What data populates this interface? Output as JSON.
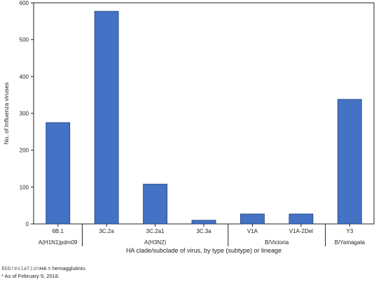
{
  "chart_data": {
    "type": "bar",
    "categories": [
      "6B.1",
      "3C.2a",
      "3C.2a1",
      "3C.3a",
      "V1A",
      "V1A-2Del",
      "Y3"
    ],
    "values": [
      275,
      577,
      108,
      10,
      27,
      27,
      338
    ],
    "groups": [
      {
        "label": "A(H1N1)pdm09",
        "categories": [
          "6B.1"
        ]
      },
      {
        "label": "A(H3N2)",
        "categories": [
          "3C.2a",
          "3C.2a1",
          "3C.3a"
        ]
      },
      {
        "label": "B/Victoria",
        "categories": [
          "V1A",
          "V1A-2Del"
        ]
      },
      {
        "label": "B/Yamagata",
        "categories": [
          "Y3"
        ]
      }
    ],
    "title": "",
    "xlabel": "HA clade/subclade of virus, by type (subtype) or lineage",
    "ylabel": "No. of Influenza viruses",
    "ylim": [
      0,
      600
    ],
    "yticks": [
      "0",
      "100",
      "200",
      "300",
      "400",
      "500",
      "600"
    ],
    "grid": false,
    "bar_color": "#4472c4"
  },
  "footnotes": {
    "abbreviation_tag": "Abbreviation",
    "abbreviation_text": "HA = hemagglutinin.",
    "date_note": "* As of February 9, 2018."
  }
}
